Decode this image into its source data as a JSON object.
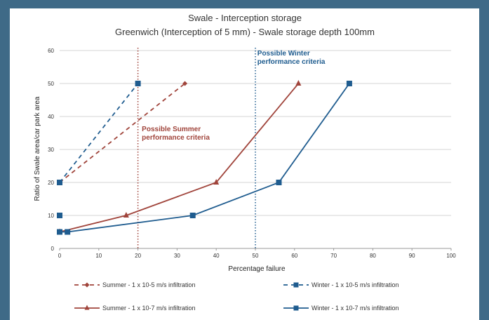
{
  "chart_data": {
    "type": "line",
    "title": "Swale - Interception storage",
    "subtitle": "Greenwich (Interception of 5 mm) - Swale storage depth 100mm",
    "xlabel": "Percentage failure",
    "ylabel": "Ratio of Swale area/car park area",
    "xlim": [
      0,
      100
    ],
    "ylim": [
      0,
      60
    ],
    "xticks": [
      0,
      10,
      20,
      30,
      40,
      50,
      60,
      70,
      80,
      90,
      100
    ],
    "yticks": [
      0,
      10,
      20,
      30,
      40,
      50,
      60
    ],
    "grid": "horizontal",
    "legend_position": "bottom",
    "series": [
      {
        "name": "Summer - 1 x 10-5 m/s infiltration",
        "color": "#a0443b",
        "line_style": "dashed",
        "marker": "diamond",
        "points": [
          [
            0,
            20
          ],
          [
            32,
            50
          ]
        ]
      },
      {
        "name": "Winter - 1 x 10-5 m/s infiltration",
        "color": "#1f5c8f",
        "line_style": "dashed",
        "marker": "square",
        "points": [
          [
            0,
            20
          ],
          [
            20,
            50
          ]
        ]
      },
      {
        "name": "Summer - 1 x 10-7 m/s infiltration",
        "color": "#a0443b",
        "line_style": "solid",
        "marker": "triangle",
        "points": [
          [
            0,
            5
          ],
          [
            17,
            10
          ],
          [
            40,
            20
          ],
          [
            61,
            50
          ]
        ]
      },
      {
        "name": "Winter - 1 x 10-7 m/s infiltration",
        "color": "#1f5c8f",
        "line_style": "solid",
        "marker": "square",
        "points": [
          [
            0,
            5
          ],
          [
            2,
            5
          ],
          [
            34,
            10
          ],
          [
            56,
            20
          ],
          [
            74,
            50
          ]
        ]
      }
    ],
    "extra_markers": [
      {
        "series": "Winter - 1 x 10-5 m/s infiltration",
        "points": [
          [
            0,
            10
          ],
          [
            0,
            5
          ]
        ]
      }
    ],
    "reference_lines": [
      {
        "x": 20,
        "color": "#a0443b",
        "style": "dotted"
      },
      {
        "x": 50,
        "color": "#1f5c8f",
        "style": "dotted"
      }
    ],
    "annotations": [
      {
        "lines": [
          "Possible Summer",
          "performance criteria"
        ],
        "x": 21,
        "y": 35.5,
        "color": "#a0443b"
      },
      {
        "lines": [
          "Possible Winter",
          "performance criteria"
        ],
        "x": 50.5,
        "y": 58.5,
        "color": "#1f5c8f"
      }
    ]
  }
}
